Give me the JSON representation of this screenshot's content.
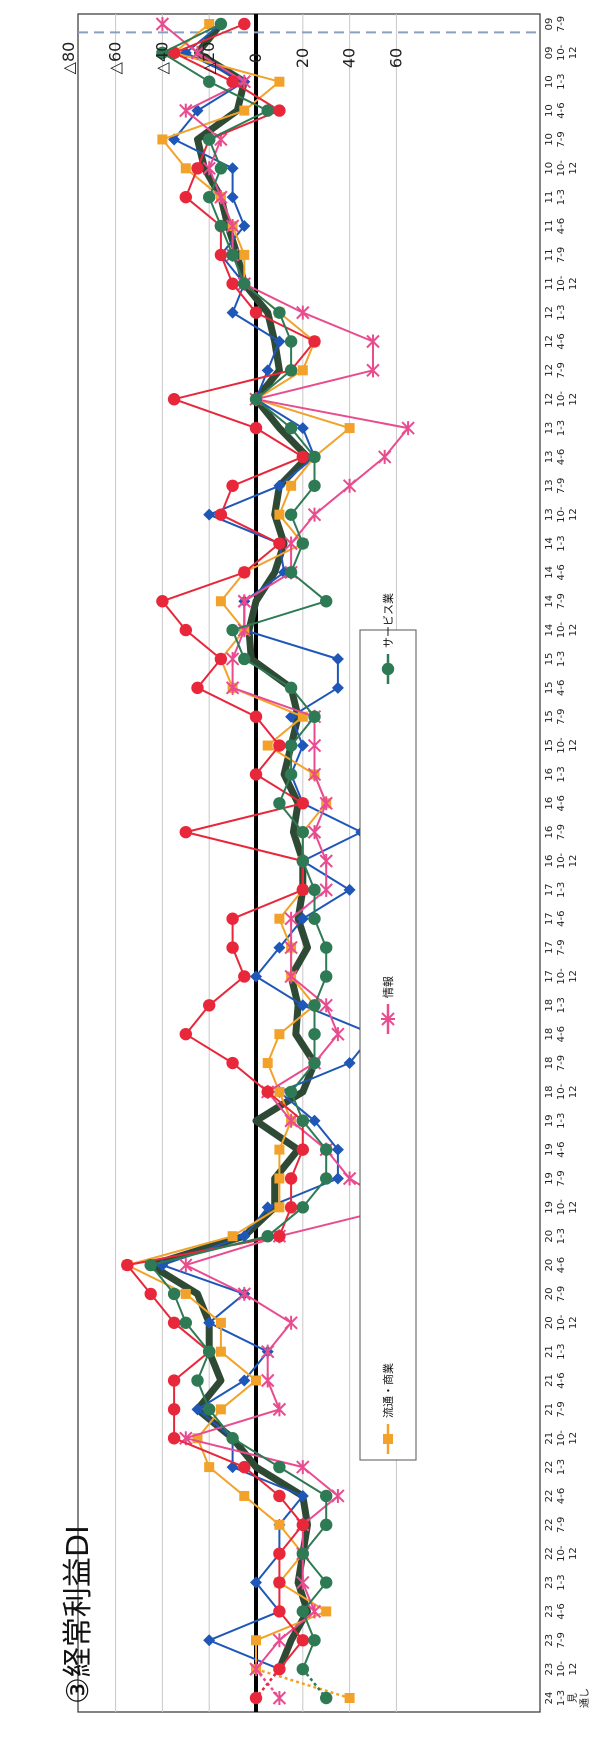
{
  "chart_data": {
    "type": "line",
    "title": "③経常利益DI",
    "ylim": [
      -80,
      70
    ],
    "yticks": [
      60,
      40,
      20,
      0,
      -20,
      -40,
      -60,
      -80
    ],
    "ytick_labels": [
      "60",
      "40",
      "20",
      "0",
      "△20",
      "△40",
      "△60",
      "△80"
    ],
    "categories": [
      "09 7-9",
      "09 10-12",
      "10 1-3",
      "10 4-6",
      "10 7-9",
      "10 10-12",
      "11 1-3",
      "11 4-6",
      "11 7-9",
      "11 10-12",
      "12 1-3",
      "12 4-6",
      "12 7-9",
      "12 10-12",
      "13 1-3",
      "13 4-6",
      "13 7-9",
      "13 10-12",
      "14 1-3",
      "14 4-6",
      "14 7-9",
      "14 10-12",
      "15 1-3",
      "15 4-6",
      "15 7-9",
      "15 10-12",
      "16 1-3",
      "16 4-6",
      "16 7-9",
      "16 10-12",
      "17 1-3",
      "17 4-6",
      "17 7-9",
      "17 10-12",
      "18 1-3",
      "18 4-6",
      "18 7-9",
      "18 10-12",
      "19 1-3",
      "19 4-6",
      "19 7-9",
      "19 10-12",
      "20 1-3",
      "20 4-6",
      "20 7-9",
      "20 10-12",
      "21 1-3",
      "21 4-6",
      "21 7-9",
      "21 10-12",
      "22 1-3",
      "22 4-6",
      "22 7-9",
      "22 10-12",
      "23 1-3",
      "23 4-6",
      "23 7-9",
      "23 10-12",
      "24 1-3 見通し"
    ],
    "xtick_labels": [
      [
        "09",
        "7-9"
      ],
      [
        "09",
        "10-",
        "12"
      ],
      [
        "10",
        "1-3"
      ],
      [
        "10",
        "4-6"
      ],
      [
        "10",
        "7-9"
      ],
      [
        "10",
        "10-",
        "12"
      ],
      [
        "11",
        "1-3"
      ],
      [
        "11",
        "4-6"
      ],
      [
        "11",
        "7-9"
      ],
      [
        "11",
        "10-",
        "12"
      ],
      [
        "12",
        "1-3"
      ],
      [
        "12",
        "4-6"
      ],
      [
        "12",
        "7-9"
      ],
      [
        "12",
        "10-",
        "12"
      ],
      [
        "13",
        "1-3"
      ],
      [
        "13",
        "4-6"
      ],
      [
        "13",
        "7-9"
      ],
      [
        "13",
        "10-",
        "12"
      ],
      [
        "14",
        "1-3"
      ],
      [
        "14",
        "4-6"
      ],
      [
        "14",
        "7-9"
      ],
      [
        "14",
        "10-",
        "12"
      ],
      [
        "15",
        "1-3"
      ],
      [
        "15",
        "4-6"
      ],
      [
        "15",
        "7-9"
      ],
      [
        "15",
        "10-",
        "12"
      ],
      [
        "16",
        "1-3"
      ],
      [
        "16",
        "4-6"
      ],
      [
        "16",
        "7-9"
      ],
      [
        "16",
        "10-",
        "12"
      ],
      [
        "17",
        "1-3"
      ],
      [
        "17",
        "4-6"
      ],
      [
        "17",
        "7-9"
      ],
      [
        "17",
        "10-",
        "12"
      ],
      [
        "18",
        "1-3"
      ],
      [
        "18",
        "4-6"
      ],
      [
        "18",
        "7-9"
      ],
      [
        "18",
        "10-",
        "12"
      ],
      [
        "19",
        "1-3"
      ],
      [
        "19",
        "4-6"
      ],
      [
        "19",
        "7-9"
      ],
      [
        "19",
        "10-",
        "12"
      ],
      [
        "20",
        "1-3"
      ],
      [
        "20",
        "4-6"
      ],
      [
        "20",
        "7-9"
      ],
      [
        "20",
        "10-",
        "12"
      ],
      [
        "21",
        "1-3"
      ],
      [
        "21",
        "4-6"
      ],
      [
        "21",
        "7-9"
      ],
      [
        "21",
        "10-",
        "12"
      ],
      [
        "22",
        "1-3"
      ],
      [
        "22",
        "4-6"
      ],
      [
        "22",
        "7-9"
      ],
      [
        "22",
        "10-",
        "12"
      ],
      [
        "23",
        "1-3"
      ],
      [
        "23",
        "4-6"
      ],
      [
        "23",
        "7-9"
      ],
      [
        "23",
        "10-",
        "12"
      ],
      [
        "24",
        "1-3",
        "見",
        "通し"
      ]
    ],
    "series": [
      {
        "name": "",
        "color": "#2f4a34",
        "marker": "none",
        "width": 7,
        "values": [
          -15,
          -25,
          -5,
          -8,
          -25,
          -22,
          -15,
          -12,
          -8,
          -5,
          5,
          8,
          10,
          0,
          10,
          22,
          10,
          8,
          12,
          8,
          0,
          -3,
          -2,
          15,
          18,
          15,
          12,
          18,
          16,
          20,
          20,
          18,
          22,
          15,
          18,
          17,
          25,
          20,
          0,
          18,
          8,
          8,
          -5,
          -45,
          -25,
          -20,
          -20,
          -15,
          -25,
          -10,
          0,
          20,
          22,
          20,
          18,
          22,
          15,
          10,
          null
        ]
      },
      {
        "name": "",
        "color": "#1f57b8",
        "marker": "diamond",
        "width": 2,
        "values": [
          -15,
          -30,
          -5,
          -25,
          -35,
          -10,
          -10,
          -5,
          -15,
          -5,
          -10,
          10,
          5,
          0,
          20,
          25,
          10,
          -20,
          10,
          12,
          -5,
          -5,
          35,
          35,
          15,
          20,
          15,
          20,
          45,
          20,
          40,
          20,
          10,
          0,
          20,
          50,
          40,
          10,
          25,
          35,
          35,
          5,
          -5,
          -40,
          -5,
          -20,
          5,
          -5,
          -25,
          -10,
          -10,
          20,
          10,
          10,
          0,
          10,
          -20,
          10,
          null
        ]
      },
      {
        "name": "流通・商業",
        "color": "#f2a22a",
        "marker": "square",
        "width": 2,
        "values": [
          -20,
          -35,
          10,
          -5,
          -40,
          -30,
          -15,
          -10,
          -5,
          -5,
          10,
          25,
          20,
          0,
          40,
          25,
          15,
          10,
          20,
          -5,
          -15,
          -5,
          -15,
          -10,
          20,
          5,
          25,
          30,
          20,
          20,
          20,
          10,
          15,
          15,
          25,
          10,
          5,
          10,
          15,
          10,
          10,
          10,
          -10,
          -55,
          -30,
          -15,
          -15,
          0,
          -15,
          -25,
          -20,
          -5,
          10,
          20,
          10,
          30,
          0,
          0,
          40
        ]
      },
      {
        "name": "情報",
        "color": "#e84c8f",
        "marker": "star",
        "width": 2,
        "values": [
          -40,
          -25,
          -5,
          -30,
          -15,
          -20,
          -15,
          -10,
          -10,
          -5,
          20,
          50,
          50,
          0,
          65,
          55,
          40,
          25,
          15,
          15,
          -5,
          -5,
          -10,
          -10,
          25,
          25,
          25,
          30,
          25,
          30,
          30,
          15,
          15,
          15,
          30,
          35,
          25,
          5,
          15,
          30,
          40,
          60,
          10,
          -30,
          -5,
          15,
          5,
          5,
          10,
          -30,
          20,
          35,
          20,
          20,
          20,
          25,
          10,
          0,
          10
        ]
      },
      {
        "name": "",
        "color": "#e8273b",
        "marker": "circle",
        "width": 2,
        "values": [
          -5,
          -35,
          -10,
          10,
          -20,
          -25,
          -30,
          -15,
          -15,
          -10,
          0,
          25,
          15,
          -35,
          0,
          20,
          -10,
          -15,
          10,
          -5,
          -40,
          -30,
          -15,
          -25,
          0,
          10,
          0,
          20,
          -30,
          20,
          20,
          -10,
          -10,
          -5,
          -20,
          -30,
          -10,
          5,
          20,
          20,
          15,
          15,
          10,
          -55,
          -45,
          -35,
          -20,
          -35,
          -35,
          -35,
          -5,
          10,
          20,
          10,
          10,
          10,
          20,
          10,
          0
        ]
      },
      {
        "name": "サービス業",
        "color": "#2e7a55",
        "marker": "circle",
        "width": 2,
        "values": [
          -15,
          -40,
          -20,
          5,
          -20,
          -15,
          -20,
          -15,
          -10,
          -5,
          10,
          15,
          15,
          0,
          15,
          25,
          25,
          15,
          20,
          15,
          30,
          -10,
          -5,
          15,
          25,
          15,
          15,
          10,
          20,
          20,
          25,
          25,
          30,
          30,
          25,
          25,
          25,
          15,
          20,
          30,
          30,
          20,
          5,
          -45,
          -35,
          -30,
          -20,
          -25,
          -20,
          -10,
          10,
          30,
          30,
          20,
          30,
          20,
          25,
          20,
          30
        ]
      }
    ]
  }
}
